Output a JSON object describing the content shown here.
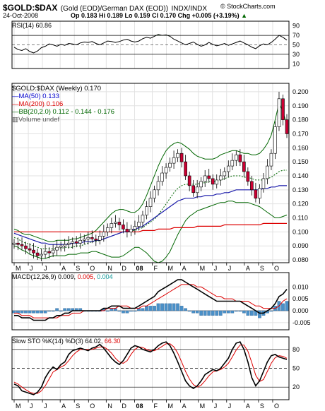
{
  "header": {
    "symbol": "$GOLD:$DAX",
    "name": "(Gold (EOD)/German DAX (EOD))",
    "exchange": "INDX/INDX",
    "copyright": "© StockCharts.com",
    "date": "24-Oct-2008",
    "quote": "Op 0.183  Hi 0.189  Lo 0.159  Cl 0.170  Chg +0.005 (+3.19%)",
    "quote_chg_arrow": "▲"
  },
  "rsi_panel": {
    "label": "RSI(14) 60.86",
    "levels": [
      "90",
      "70",
      "50",
      "30",
      "10"
    ]
  },
  "price_panel": {
    "legend_symbol": "$GOLD:$DAX (Weekly) 0.170",
    "legend_ma50": "MA(50) 0.133",
    "legend_ma200": "MA(200) 0.106",
    "legend_bb": "BB(20,2.0) 0.112 - 0.144 - 0.176",
    "legend_volume": "Volume undef",
    "y_ticks": [
      "0.200",
      "0.190",
      "0.180",
      "0.170",
      "0.160",
      "0.150",
      "0.140",
      "0.130",
      "0.120",
      "0.110",
      "0.100",
      "0.090",
      "0.080"
    ],
    "x_ticks": [
      "M",
      "J",
      "J",
      "A",
      "S",
      "O",
      "N",
      "D",
      "08",
      "F",
      "M",
      "A",
      "M",
      "J",
      "J",
      "A",
      "S",
      "O"
    ]
  },
  "macd_panel": {
    "label_prefix": "MACD(12,26,9) 0.009,",
    "label_signal": "0.005,",
    "label_hist": "0.004",
    "y_ticks": [
      "0.010",
      "0.005",
      "0.000",
      "-0.005"
    ]
  },
  "sto_panel": {
    "label_prefix": "Slow STO %K(14) %D(3) 64.02,",
    "label_d": "66.30",
    "y_ticks": [
      "80",
      "50",
      "20"
    ]
  },
  "bottom_axis": [
    "M",
    "J",
    "J",
    "A",
    "S",
    "O",
    "N",
    "D",
    "08",
    "F",
    "M",
    "A",
    "M",
    "J",
    "J",
    "A",
    "S",
    "O"
  ],
  "colors": {
    "ma50": "#1a1aaa",
    "ma200": "#dd0000",
    "bb": "#006600",
    "up_candle": "#ffffff",
    "down_candle": "#cc0033",
    "rsi_fill": "#4a7a4a",
    "macd_hist": "#4a90c8",
    "sto_d": "#dd0000"
  },
  "chart_data": [
    {
      "type": "line",
      "title": "RSI(14) 60.86",
      "ylim": [
        0,
        100
      ],
      "series": [
        {
          "name": "RSI(14)",
          "values": [
            45,
            40,
            38,
            42,
            36,
            33,
            37,
            44,
            47,
            52,
            50,
            47,
            51,
            49,
            53,
            52,
            50,
            54,
            56,
            55,
            57,
            53,
            50,
            54,
            58,
            57,
            55,
            57,
            60,
            62,
            58,
            56,
            58,
            63,
            66,
            64,
            68,
            72,
            70,
            71,
            68,
            62,
            58,
            54,
            50,
            53,
            56,
            51,
            47,
            50,
            55,
            51,
            48,
            50,
            53,
            49,
            52,
            55,
            58,
            54,
            50,
            45,
            42,
            48,
            52,
            50,
            55,
            62,
            70,
            66,
            60
          ]
        }
      ]
    },
    {
      "type": "line",
      "title": "$GOLD:$DAX (Weekly) 0.170",
      "ylim": [
        0.078,
        0.206
      ],
      "x_ticks": [
        "M",
        "J",
        "J",
        "A",
        "S",
        "O",
        "N",
        "D",
        "08",
        "F",
        "M",
        "A",
        "M",
        "J",
        "J",
        "A",
        "S",
        "O"
      ],
      "series": [
        {
          "name": "$GOLD:$DAX",
          "values": [
            0.092,
            0.091,
            0.09,
            0.088,
            0.087,
            0.085,
            0.083,
            0.084,
            0.086,
            0.085,
            0.087,
            0.089,
            0.09,
            0.091,
            0.092,
            0.093,
            0.092,
            0.094,
            0.095,
            0.096,
            0.095,
            0.094,
            0.097,
            0.1,
            0.103,
            0.106,
            0.107,
            0.105,
            0.102,
            0.1,
            0.102,
            0.104,
            0.107,
            0.112,
            0.118,
            0.124,
            0.13,
            0.136,
            0.142,
            0.146,
            0.149,
            0.153,
            0.156,
            0.15,
            0.14,
            0.133,
            0.128,
            0.132,
            0.136,
            0.14,
            0.138,
            0.134,
            0.137,
            0.14,
            0.143,
            0.147,
            0.151,
            0.155,
            0.15,
            0.143,
            0.136,
            0.13,
            0.124,
            0.131,
            0.138,
            0.147,
            0.156,
            0.175,
            0.195,
            0.18,
            0.17
          ]
        },
        {
          "name": "MA(50)",
          "values": [
            0.099,
            0.098,
            0.097,
            0.096,
            0.095,
            0.094,
            0.093,
            0.092,
            0.092,
            0.091,
            0.091,
            0.091,
            0.091,
            0.091,
            0.091,
            0.092,
            0.092,
            0.092,
            0.093,
            0.093,
            0.093,
            0.094,
            0.094,
            0.095,
            0.096,
            0.097,
            0.098,
            0.099,
            0.1,
            0.1,
            0.101,
            0.102,
            0.103,
            0.104,
            0.106,
            0.108,
            0.11,
            0.112,
            0.114,
            0.116,
            0.118,
            0.12,
            0.122,
            0.123,
            0.124,
            0.124,
            0.124,
            0.125,
            0.125,
            0.126,
            0.126,
            0.126,
            0.127,
            0.127,
            0.128,
            0.128,
            0.129,
            0.13,
            0.13,
            0.13,
            0.13,
            0.13,
            0.13,
            0.13,
            0.131,
            0.131,
            0.132,
            0.132,
            0.133,
            0.133,
            0.133
          ]
        },
        {
          "name": "MA(200)",
          "values": [
            0.1,
            0.1,
            0.1,
            0.1,
            0.1,
            0.1,
            0.1,
            0.1,
            0.1,
            0.1,
            0.1,
            0.1,
            0.1,
            0.1,
            0.1,
            0.1,
            0.1,
            0.1,
            0.1,
            0.1,
            0.1,
            0.1,
            0.1,
            0.1,
            0.1,
            0.1,
            0.1,
            0.1,
            0.1,
            0.1,
            0.1,
            0.1,
            0.1,
            0.101,
            0.101,
            0.101,
            0.101,
            0.102,
            0.102,
            0.102,
            0.102,
            0.103,
            0.103,
            0.103,
            0.103,
            0.103,
            0.103,
            0.104,
            0.104,
            0.104,
            0.104,
            0.104,
            0.104,
            0.104,
            0.105,
            0.105,
            0.105,
            0.105,
            0.105,
            0.105,
            0.105,
            0.105,
            0.105,
            0.105,
            0.106,
            0.106,
            0.106,
            0.106,
            0.106,
            0.106,
            0.106
          ]
        },
        {
          "name": "BB upper",
          "values": [
            0.102,
            0.101,
            0.099,
            0.098,
            0.098,
            0.097,
            0.096,
            0.095,
            0.094,
            0.093,
            0.093,
            0.094,
            0.094,
            0.094,
            0.094,
            0.095,
            0.095,
            0.096,
            0.097,
            0.098,
            0.099,
            0.101,
            0.104,
            0.107,
            0.11,
            0.113,
            0.115,
            0.116,
            0.116,
            0.115,
            0.114,
            0.114,
            0.116,
            0.12,
            0.126,
            0.133,
            0.14,
            0.147,
            0.153,
            0.158,
            0.161,
            0.163,
            0.164,
            0.163,
            0.161,
            0.159,
            0.156,
            0.154,
            0.153,
            0.152,
            0.152,
            0.152,
            0.153,
            0.155,
            0.156,
            0.157,
            0.158,
            0.158,
            0.157,
            0.156,
            0.156,
            0.155,
            0.155,
            0.156,
            0.159,
            0.163,
            0.169,
            0.18,
            0.192,
            0.186,
            0.176
          ]
        },
        {
          "name": "BB middle",
          "values": [
            0.096,
            0.095,
            0.093,
            0.092,
            0.091,
            0.09,
            0.089,
            0.088,
            0.088,
            0.088,
            0.088,
            0.088,
            0.088,
            0.089,
            0.089,
            0.089,
            0.09,
            0.09,
            0.091,
            0.092,
            0.093,
            0.093,
            0.094,
            0.095,
            0.096,
            0.097,
            0.098,
            0.099,
            0.1,
            0.1,
            0.101,
            0.101,
            0.102,
            0.103,
            0.105,
            0.107,
            0.109,
            0.112,
            0.116,
            0.12,
            0.124,
            0.128,
            0.131,
            0.133,
            0.134,
            0.134,
            0.134,
            0.134,
            0.135,
            0.135,
            0.136,
            0.136,
            0.136,
            0.137,
            0.138,
            0.139,
            0.14,
            0.14,
            0.14,
            0.139,
            0.139,
            0.138,
            0.137,
            0.137,
            0.137,
            0.138,
            0.139,
            0.141,
            0.143,
            0.144,
            0.144
          ]
        },
        {
          "name": "BB lower",
          "values": [
            0.09,
            0.089,
            0.087,
            0.086,
            0.084,
            0.083,
            0.082,
            0.081,
            0.081,
            0.082,
            0.083,
            0.083,
            0.083,
            0.083,
            0.084,
            0.084,
            0.084,
            0.085,
            0.085,
            0.085,
            0.086,
            0.086,
            0.085,
            0.084,
            0.083,
            0.082,
            0.082,
            0.082,
            0.083,
            0.085,
            0.087,
            0.089,
            0.089,
            0.087,
            0.085,
            0.082,
            0.079,
            0.078,
            0.079,
            0.082,
            0.086,
            0.092,
            0.098,
            0.103,
            0.108,
            0.111,
            0.113,
            0.115,
            0.116,
            0.117,
            0.118,
            0.119,
            0.12,
            0.121,
            0.121,
            0.122,
            0.122,
            0.121,
            0.121,
            0.121,
            0.121,
            0.12,
            0.119,
            0.118,
            0.116,
            0.114,
            0.112,
            0.11,
            0.11,
            0.111,
            0.112
          ]
        }
      ]
    },
    {
      "type": "line",
      "title": "MACD(12,26,9) 0.009, 0.005, 0.004",
      "ylim": [
        -0.008,
        0.016
      ],
      "series": [
        {
          "name": "MACD",
          "values": [
            -0.002,
            -0.002,
            -0.003,
            -0.003,
            -0.003,
            -0.004,
            -0.004,
            -0.004,
            -0.004,
            -0.003,
            -0.003,
            -0.002,
            -0.002,
            -0.001,
            -0.001,
            0.0,
            0.0,
            0.0,
            0.0,
            0.0,
            0.0,
            0.0,
            0.0,
            0.001,
            0.001,
            0.002,
            0.002,
            0.002,
            0.001,
            0.001,
            0.001,
            0.001,
            0.002,
            0.003,
            0.004,
            0.005,
            0.006,
            0.008,
            0.009,
            0.01,
            0.011,
            0.012,
            0.013,
            0.013,
            0.012,
            0.011,
            0.01,
            0.009,
            0.008,
            0.007,
            0.006,
            0.005,
            0.004,
            0.004,
            0.004,
            0.004,
            0.004,
            0.004,
            0.004,
            0.003,
            0.002,
            0.001,
            0.0,
            -0.001,
            -0.001,
            0.0,
            0.001,
            0.003,
            0.006,
            0.007,
            0.009
          ]
        },
        {
          "name": "Signal",
          "values": [
            -0.001,
            -0.001,
            -0.002,
            -0.002,
            -0.002,
            -0.003,
            -0.003,
            -0.003,
            -0.003,
            -0.003,
            -0.003,
            -0.003,
            -0.002,
            -0.002,
            -0.002,
            -0.001,
            -0.001,
            -0.001,
            0.0,
            0.0,
            0.0,
            0.0,
            0.0,
            0.0,
            0.001,
            0.001,
            0.001,
            0.002,
            0.002,
            0.002,
            0.001,
            0.001,
            0.001,
            0.002,
            0.002,
            0.003,
            0.004,
            0.005,
            0.006,
            0.007,
            0.008,
            0.009,
            0.01,
            0.011,
            0.011,
            0.011,
            0.011,
            0.01,
            0.01,
            0.009,
            0.008,
            0.007,
            0.006,
            0.006,
            0.005,
            0.005,
            0.005,
            0.004,
            0.004,
            0.004,
            0.004,
            0.003,
            0.002,
            0.002,
            0.001,
            0.001,
            0.001,
            0.001,
            0.002,
            0.004,
            0.005
          ]
        },
        {
          "name": "Histogram",
          "values": [
            -0.001,
            -0.001,
            -0.001,
            -0.001,
            -0.001,
            -0.001,
            -0.001,
            -0.001,
            -0.001,
            0.0,
            0.0,
            0.001,
            0.0,
            0.001,
            0.001,
            0.001,
            0.001,
            0.001,
            0.0,
            0.0,
            0.0,
            0.0,
            0.0,
            0.001,
            0.0,
            0.001,
            0.001,
            0.0,
            -0.001,
            -0.001,
            0.0,
            0.0,
            0.001,
            0.001,
            0.002,
            0.002,
            0.002,
            0.003,
            0.003,
            0.003,
            0.003,
            0.003,
            0.003,
            0.002,
            0.001,
            0.0,
            -0.001,
            -0.001,
            -0.002,
            -0.002,
            -0.002,
            -0.002,
            -0.002,
            -0.002,
            -0.001,
            -0.001,
            -0.001,
            0.0,
            0.0,
            -0.001,
            -0.002,
            -0.002,
            -0.002,
            -0.003,
            -0.002,
            -0.001,
            0.0,
            0.002,
            0.004,
            0.003,
            0.004
          ]
        }
      ]
    },
    {
      "type": "line",
      "title": "Slow STO %K(14) %D(3) 64.02, 66.30",
      "ylim": [
        0,
        100
      ],
      "series": [
        {
          "name": "%K",
          "values": [
            25,
            22,
            14,
            12,
            10,
            8,
            12,
            20,
            35,
            45,
            52,
            48,
            56,
            60,
            72,
            78,
            80,
            82,
            80,
            78,
            82,
            84,
            88,
            82,
            74,
            66,
            60,
            56,
            62,
            72,
            82,
            86,
            84,
            80,
            78,
            76,
            80,
            86,
            90,
            92,
            86,
            74,
            60,
            45,
            30,
            22,
            18,
            22,
            30,
            40,
            44,
            48,
            46,
            50,
            58,
            66,
            80,
            90,
            92,
            80,
            60,
            35,
            22,
            30,
            45,
            60,
            70,
            72,
            68,
            66,
            64
          ]
        },
        {
          "name": "%D",
          "values": [
            28,
            25,
            20,
            16,
            12,
            10,
            10,
            14,
            22,
            33,
            44,
            48,
            52,
            55,
            62,
            70,
            76,
            80,
            80,
            80,
            80,
            82,
            84,
            84,
            80,
            74,
            66,
            60,
            58,
            62,
            72,
            80,
            84,
            83,
            80,
            78,
            78,
            81,
            85,
            89,
            89,
            84,
            74,
            60,
            45,
            33,
            24,
            20,
            23,
            30,
            38,
            44,
            46,
            48,
            52,
            58,
            68,
            79,
            87,
            87,
            77,
            59,
            39,
            29,
            32,
            45,
            58,
            67,
            70,
            69,
            66
          ]
        }
      ]
    }
  ]
}
